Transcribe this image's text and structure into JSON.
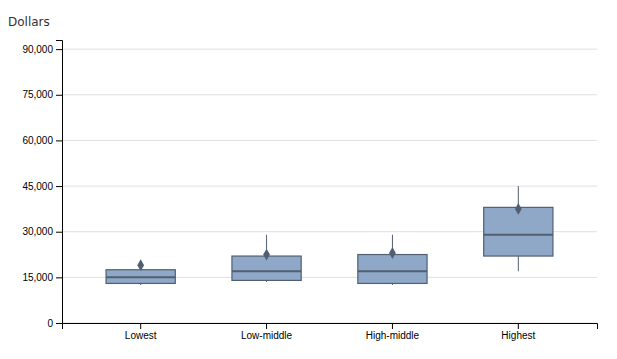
{
  "chart_data": {
    "type": "box",
    "ylabel": "Dollars",
    "categories": [
      "Lowest",
      "Low-middle",
      "High-middle",
      "Highest"
    ],
    "boxes": [
      {
        "whisker_low": 12500,
        "q1": 13000,
        "median": 15000,
        "q3": 17500,
        "whisker_high": 20000,
        "mean": 19000
      },
      {
        "whisker_low": 13500,
        "q1": 14000,
        "median": 17000,
        "q3": 22000,
        "whisker_high": 29000,
        "mean": 22500
      },
      {
        "whisker_low": 12500,
        "q1": 13000,
        "median": 17000,
        "q3": 22500,
        "whisker_high": 29000,
        "mean": 23000
      },
      {
        "whisker_low": 17000,
        "q1": 22000,
        "median": 29000,
        "q3": 38000,
        "whisker_high": 45000,
        "mean": 37500
      }
    ],
    "ylim": [
      0,
      93000
    ],
    "yticks": [
      0,
      {
        "value": 15000,
        "label": "15,000"
      },
      {
        "value": 30000,
        "label": "30,000"
      },
      {
        "value": 45000,
        "label": "45,000"
      },
      {
        "value": 60000,
        "label": "60,000"
      },
      {
        "value": 75000,
        "label": "75,000"
      },
      {
        "value": 90000,
        "label": "90,000"
      }
    ],
    "color": "#8fa8c8",
    "grid": true
  }
}
